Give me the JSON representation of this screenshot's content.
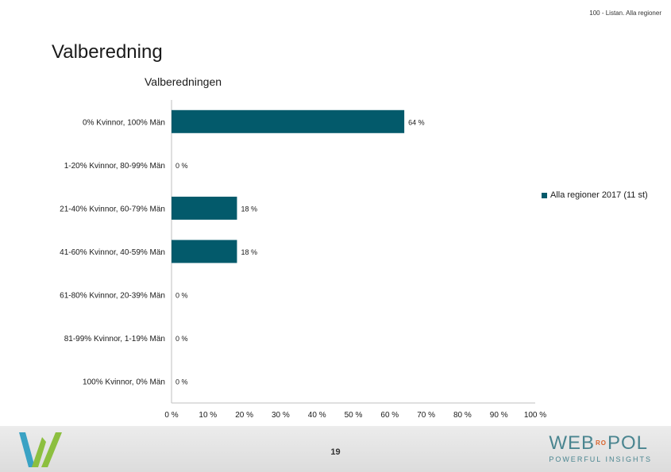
{
  "header": {
    "report_label": "100 - Listan. Alla regioner",
    "title": "Valberedning"
  },
  "chart_data": {
    "type": "bar",
    "orientation": "horizontal",
    "title": "Valberedningen",
    "categories": [
      "0% Kvinnor, 100% Män",
      "1-20% Kvinnor, 80-99% Män",
      "21-40% Kvinnor, 60-79% Män",
      "41-60% Kvinnor, 40-59% Män",
      "61-80% Kvinnor, 20-39% Män",
      "81-99% Kvinnor, 1-19% Män",
      "100% Kvinnor, 0% Män"
    ],
    "series": [
      {
        "name": "Alla regioner 2017 (11 st)",
        "values": [
          64,
          0,
          18,
          18,
          0,
          0,
          0
        ],
        "data_labels": [
          "64 %",
          "0 %",
          "18 %",
          "18 %",
          "0 %",
          "0 %",
          "0 %"
        ],
        "color": "#035a6b"
      }
    ],
    "xlim": [
      0,
      100
    ],
    "x_ticks": [
      "0 %",
      "10 %",
      "20 %",
      "30 %",
      "40 %",
      "50 %",
      "60 %",
      "70 %",
      "80 %",
      "90 %",
      "100 %"
    ],
    "grid": false,
    "legend_position": "right"
  },
  "footer": {
    "page_number": "19",
    "brand_web": "WEB",
    "brand_ro": "RO",
    "brand_pol": "POL",
    "brand_tagline": "POWERFUL INSIGHTS",
    "logo_colors": [
      "#3aa2c4",
      "#8cbf3f"
    ]
  }
}
